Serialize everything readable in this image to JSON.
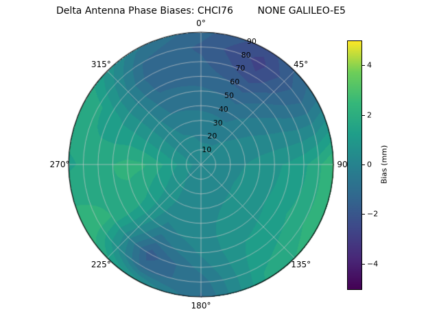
{
  "title": "Delta Antenna Phase Biases: CHCI76        NONE GALILEO-E5",
  "colorbar": {
    "label": "Bias (mm)",
    "tick_labels": [
      "−4",
      "−2",
      "0",
      "2",
      "4"
    ],
    "tick_values": [
      -4,
      -2,
      0,
      2,
      4
    ],
    "range": [
      -5,
      5
    ]
  },
  "chart_data": {
    "type": "heatmap",
    "style": "filled-contour",
    "projection": "polar",
    "title": "Delta Antenna Phase Biases: CHCI76        NONE GALILEO-E5",
    "theta_tick_labels": [
      "0°",
      "45°",
      "90",
      "135°",
      "180°",
      "225°",
      "270°",
      "315°"
    ],
    "theta_ticks_deg": [
      0,
      45,
      90,
      135,
      180,
      225,
      270,
      315
    ],
    "theta_zero": "top",
    "theta_direction": "clockwise",
    "r_tick_labels": [
      "10",
      "20",
      "30",
      "40",
      "50",
      "60",
      "70",
      "80",
      "90"
    ],
    "r_ticks": [
      10,
      20,
      30,
      40,
      50,
      60,
      70,
      80,
      90
    ],
    "r_range": [
      0,
      90
    ],
    "grid": true,
    "azimuth_deg": [
      0,
      30,
      60,
      90,
      120,
      150,
      180,
      210,
      240,
      270,
      300,
      330
    ],
    "zenith_deg": [
      0,
      10,
      20,
      30,
      40,
      50,
      60,
      70,
      80,
      90
    ],
    "bias_mm": [
      [
        0.2,
        0.2,
        0.2,
        0.2,
        0.2,
        0.2,
        0.2,
        0.2,
        0.2,
        0.2,
        0.2,
        0.2
      ],
      [
        0.1,
        0.1,
        0.2,
        0.3,
        0.3,
        0.3,
        0.3,
        0.3,
        0.5,
        0.7,
        0.4,
        0.2
      ],
      [
        -0.1,
        -0.1,
        0.2,
        0.4,
        0.4,
        0.4,
        0.3,
        0.4,
        0.8,
        1.2,
        0.5,
        0.1
      ],
      [
        -0.3,
        -0.4,
        0.1,
        0.5,
        0.6,
        0.5,
        0.4,
        0.4,
        1.1,
        1.7,
        0.6,
        -0.2
      ],
      [
        -0.6,
        -0.7,
        0.0,
        0.7,
        0.8,
        0.6,
        0.4,
        0.2,
        1.4,
        2.1,
        0.7,
        -0.5
      ],
      [
        -0.9,
        -1.1,
        -0.2,
        0.9,
        1.0,
        0.8,
        0.3,
        -0.2,
        1.7,
        2.2,
        0.8,
        -0.8
      ],
      [
        -1.2,
        -1.7,
        -0.4,
        1.1,
        1.3,
        1.0,
        0.1,
        -0.9,
        1.9,
        2.0,
        0.9,
        -1.1
      ],
      [
        -1.4,
        -2.4,
        -0.7,
        1.4,
        1.6,
        1.2,
        -0.3,
        -1.8,
        2.0,
        1.8,
        1.2,
        -1.3
      ],
      [
        -1.6,
        -2.7,
        -0.9,
        1.9,
        2.0,
        1.4,
        -0.8,
        -1.2,
        2.2,
        1.6,
        1.6,
        -1.0
      ],
      [
        -1.3,
        -2.3,
        -0.6,
        2.6,
        2.4,
        1.6,
        -1.1,
        0.8,
        2.4,
        1.4,
        2.0,
        -0.4
      ]
    ],
    "contour_step_mm": 0.5,
    "colormap": "viridis",
    "colormap_stops": [
      [
        0.0,
        "#440154"
      ],
      [
        0.125,
        "#482878"
      ],
      [
        0.25,
        "#3e4989"
      ],
      [
        0.375,
        "#31688e"
      ],
      [
        0.5,
        "#26828e"
      ],
      [
        0.625,
        "#1f9e89"
      ],
      [
        0.75,
        "#35b779"
      ],
      [
        0.875,
        "#6ece58"
      ],
      [
        1.0,
        "#fde725"
      ]
    ],
    "colorbar_label": "Bias (mm)",
    "colorbar_ticks": [
      -4,
      -2,
      0,
      2,
      4
    ],
    "colorbar_range": [
      -5,
      5
    ],
    "grid_color": "#cccccc",
    "outline_color": "#000000"
  }
}
